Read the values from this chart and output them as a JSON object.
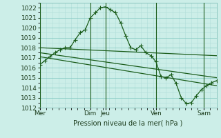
{
  "xlabel": "Pression niveau de la mer( hPa )",
  "ylim": [
    1012,
    1022.5
  ],
  "yticks": [
    1012,
    1013,
    1014,
    1015,
    1016,
    1017,
    1018,
    1019,
    1020,
    1021,
    1022
  ],
  "bg_color": "#cceee8",
  "grid_color_minor": "#b0ddd8",
  "grid_color_major": "#80c8c0",
  "line_color": "#1a5c1a",
  "day_lines_x": [
    0.0,
    40.0,
    52.0,
    92.0,
    130.0
  ],
  "day_labels": [
    "Mer",
    "Dim",
    "Jeu",
    "Ven",
    "Sam"
  ],
  "xlim": [
    0,
    140
  ],
  "series1_x": [
    0,
    4,
    8,
    12,
    16,
    20,
    24,
    28,
    32,
    36,
    40,
    44,
    48,
    52,
    56,
    60,
    64,
    68,
    72,
    76,
    80,
    84,
    88,
    92,
    96,
    100,
    104,
    108,
    112,
    116,
    120,
    124,
    128,
    132,
    136,
    140
  ],
  "series1_y": [
    1016.3,
    1016.7,
    1017.1,
    1017.5,
    1017.8,
    1018.0,
    1018.0,
    1018.8,
    1019.5,
    1019.8,
    1021.0,
    1021.5,
    1022.0,
    1022.1,
    1021.8,
    1021.5,
    1020.5,
    1019.2,
    1018.0,
    1017.8,
    1018.2,
    1017.5,
    1017.2,
    1016.6,
    1015.1,
    1015.0,
    1015.3,
    1014.4,
    1013.0,
    1012.4,
    1012.5,
    1013.2,
    1013.8,
    1014.2,
    1014.5,
    1014.7
  ],
  "series2_x": [
    0,
    140
  ],
  "series2_y": [
    1018.0,
    1017.2
  ],
  "series3_x": [
    0,
    140
  ],
  "series3_y": [
    1017.5,
    1015.0
  ],
  "series4_x": [
    0,
    140
  ],
  "series4_y": [
    1017.1,
    1014.2
  ]
}
